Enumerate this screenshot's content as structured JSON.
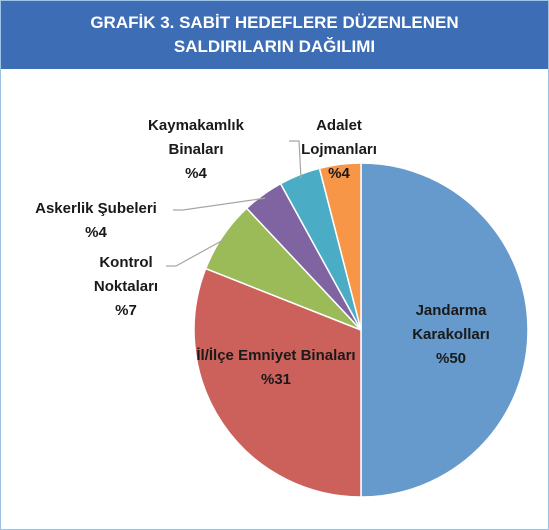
{
  "chart_data": {
    "type": "pie",
    "title": "GRAFİK 3. SABİT HEDEFLERE DÜZENLENEN SALDIRILARIN DAĞILIMI",
    "categories": [
      "Jandarma Karakolları",
      "İl/İlçe Emniyet Binaları",
      "Kontrol Noktaları",
      "Askerlik Şubeleri",
      "Kaymakamlık Binaları",
      "Adalet Lojmanları"
    ],
    "values": [
      50,
      31,
      7,
      4,
      4,
      4
    ],
    "value_labels": [
      "%50",
      "%31",
      "%7",
      "%4",
      "%4",
      "%4"
    ],
    "colors": [
      "#6699cc",
      "#cc605b",
      "#9bbb59",
      "#8064a2",
      "#4bacc6",
      "#f79646"
    ]
  }
}
